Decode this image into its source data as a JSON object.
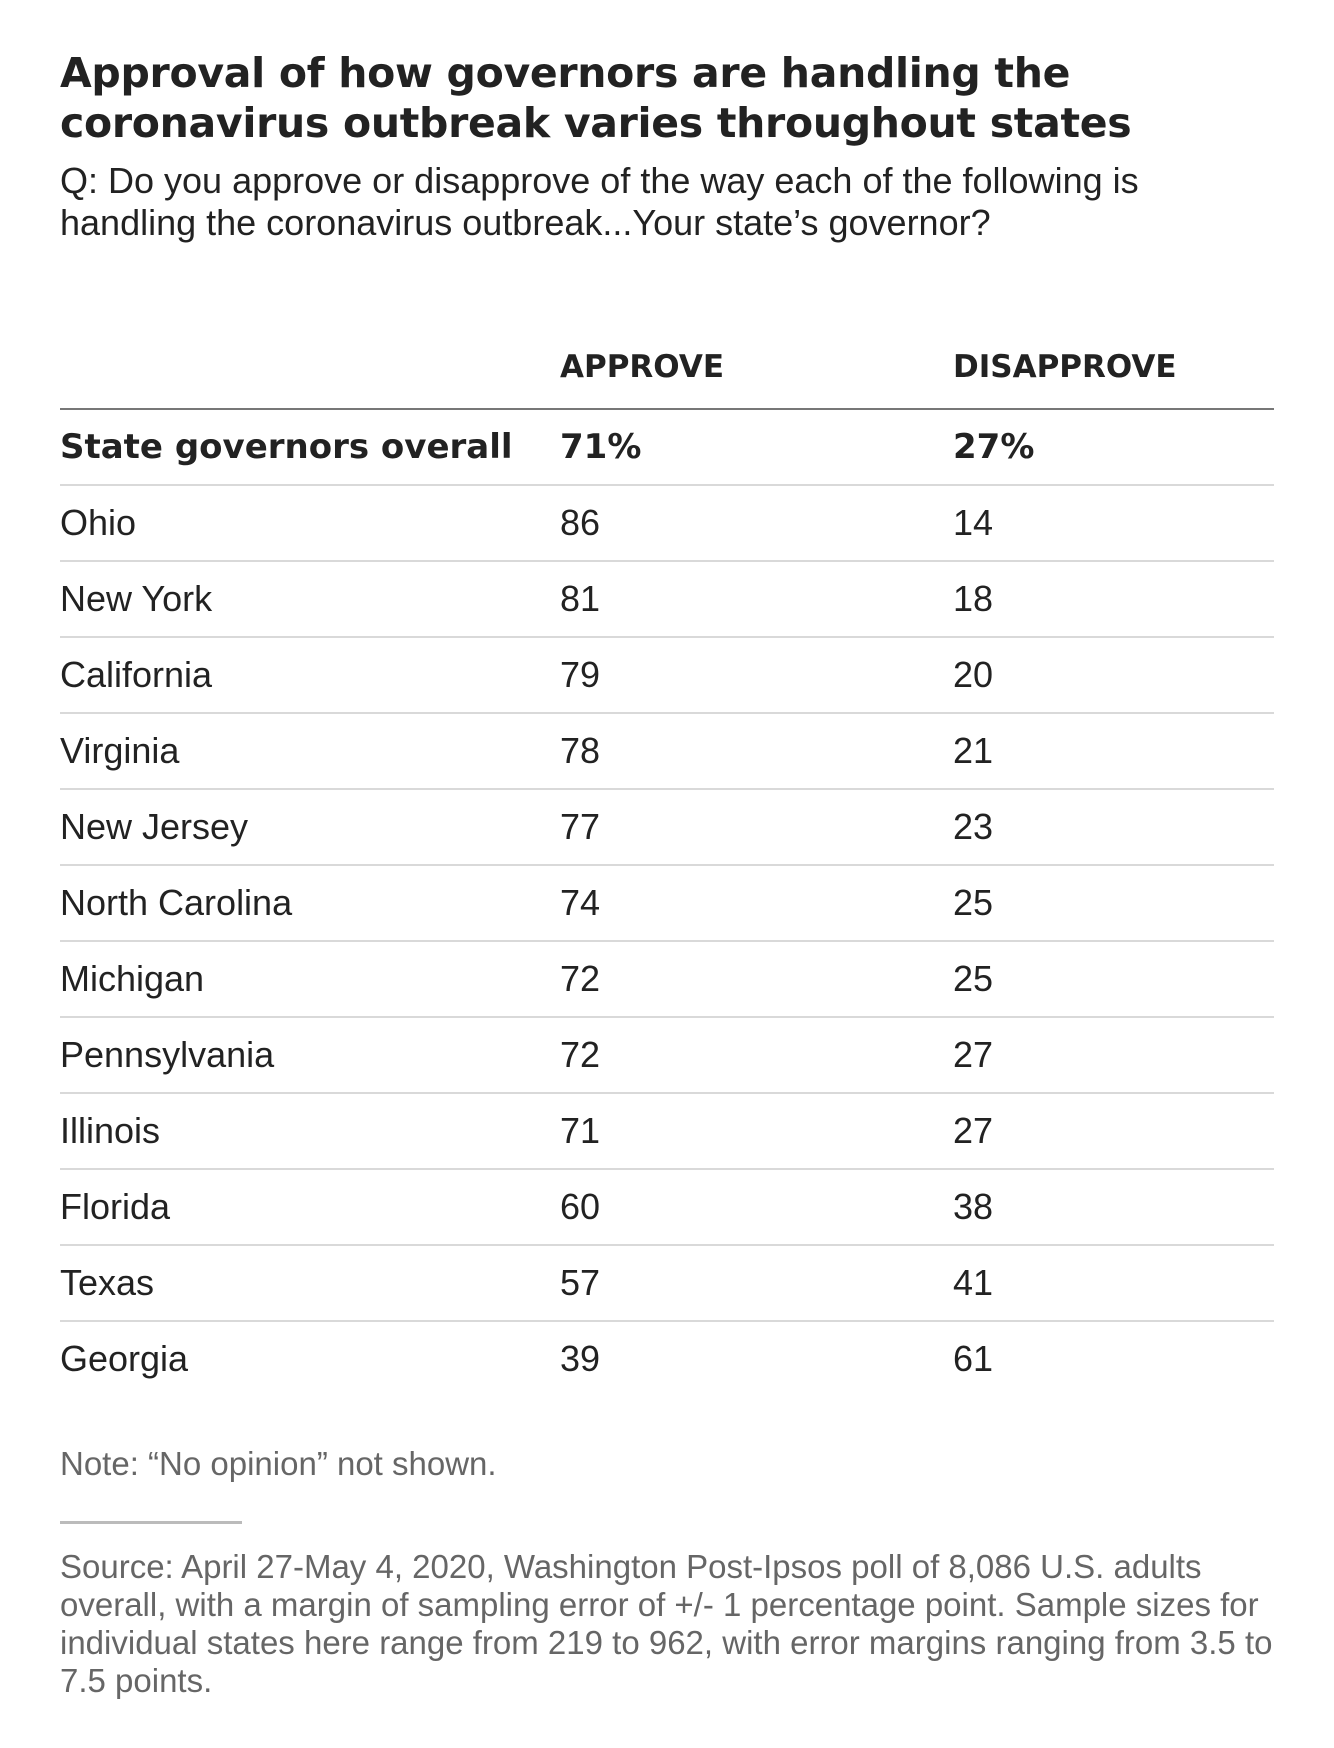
{
  "title": "Approval of how governors are handling the coronavirus outbreak varies throughout states",
  "subtitle": "Q: Do you approve or disapprove of the way each of the following is handling the coronavirus outbreak...Your state’s governor?",
  "chart_data": {
    "type": "table",
    "columns": [
      "",
      "APPROVE",
      "DISAPPROVE"
    ],
    "overall": {
      "label": "State governors overall",
      "approve": "71%",
      "disapprove": "27%"
    },
    "rows": [
      {
        "state": "Ohio",
        "approve": 86,
        "disapprove": 14
      },
      {
        "state": "New York",
        "approve": 81,
        "disapprove": 18
      },
      {
        "state": "California",
        "approve": 79,
        "disapprove": 20
      },
      {
        "state": "Virginia",
        "approve": 78,
        "disapprove": 21
      },
      {
        "state": "New Jersey",
        "approve": 77,
        "disapprove": 23
      },
      {
        "state": "North Carolina",
        "approve": 74,
        "disapprove": 25
      },
      {
        "state": "Michigan",
        "approve": 72,
        "disapprove": 25
      },
      {
        "state": "Pennsylvania",
        "approve": 72,
        "disapprove": 27
      },
      {
        "state": "Illinois",
        "approve": 71,
        "disapprove": 27
      },
      {
        "state": "Florida",
        "approve": 60,
        "disapprove": 38
      },
      {
        "state": "Texas",
        "approve": 57,
        "disapprove": 41
      },
      {
        "state": "Georgia",
        "approve": 39,
        "disapprove": 61
      }
    ]
  },
  "note": "Note: “No opinion” not shown.",
  "source": "Source: April 27-May 4, 2020, Washington Post-Ipsos poll of 8,086 U.S. adults overall, with a margin of sampling error of +/- 1 percentage point. Sample sizes for individual states here range from 219 to 962, with error margins ranging from 3.5 to 7.5 points.",
  "colors": {
    "text": "#222222",
    "muted": "#666666",
    "header_rule": "#777777",
    "row_rule": "#d9d9d9"
  }
}
